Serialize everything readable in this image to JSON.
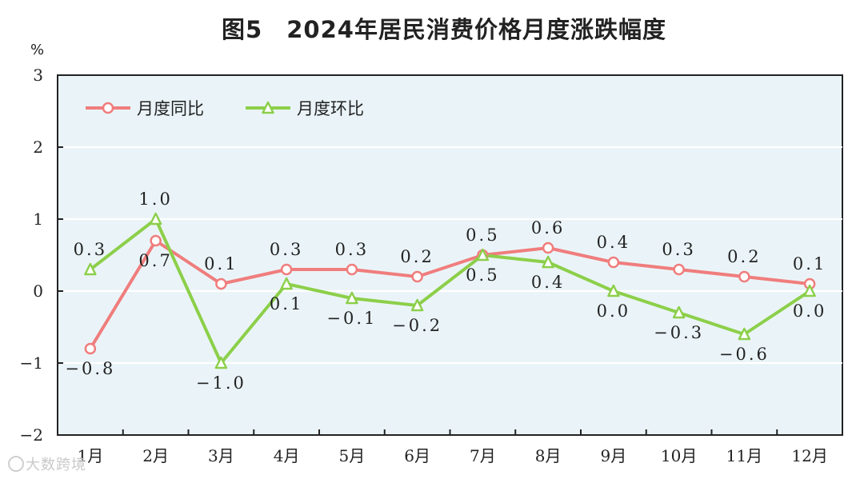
{
  "chart_data": {
    "type": "line",
    "title": "图5　2024年居民消费价格月度涨跌幅度",
    "ylabel": "%",
    "ylim": [
      -2,
      3
    ],
    "yticks": [
      "3",
      "2",
      "1",
      "0",
      "-1",
      "-2"
    ],
    "categories": [
      "1月",
      "2月",
      "3月",
      "4月",
      "5月",
      "6月",
      "7月",
      "8月",
      "9月",
      "10月",
      "11月",
      "12月"
    ],
    "series": [
      {
        "name": "月度同比",
        "color": "#f07d7d",
        "marker": "circle",
        "values": [
          -0.8,
          0.7,
          0.1,
          0.3,
          0.3,
          0.2,
          0.5,
          0.6,
          0.4,
          0.3,
          0.2,
          0.1
        ],
        "labels": [
          "−0.8",
          "0.7",
          "0.1",
          "0.3",
          "0.3",
          "0.2",
          "0.5",
          "0.6",
          "0.4",
          "0.3",
          "0.2",
          "0.1"
        ]
      },
      {
        "name": "月度环比",
        "color": "#8ccf4a",
        "marker": "triangle",
        "values": [
          0.3,
          1.0,
          -1.0,
          0.1,
          -0.1,
          -0.2,
          0.5,
          0.4,
          0.0,
          -0.3,
          -0.6,
          0.0
        ],
        "labels": [
          "0.3",
          "1.0",
          "−1.0",
          "0.1",
          "−0.1",
          "−0.2",
          "0.5",
          "0.4",
          "0.0",
          "−0.3",
          "−0.6",
          "0.0"
        ]
      }
    ],
    "legend": "top-left",
    "grid": true,
    "plot_background": "#eaf4f8"
  },
  "watermark": "大数跨境"
}
